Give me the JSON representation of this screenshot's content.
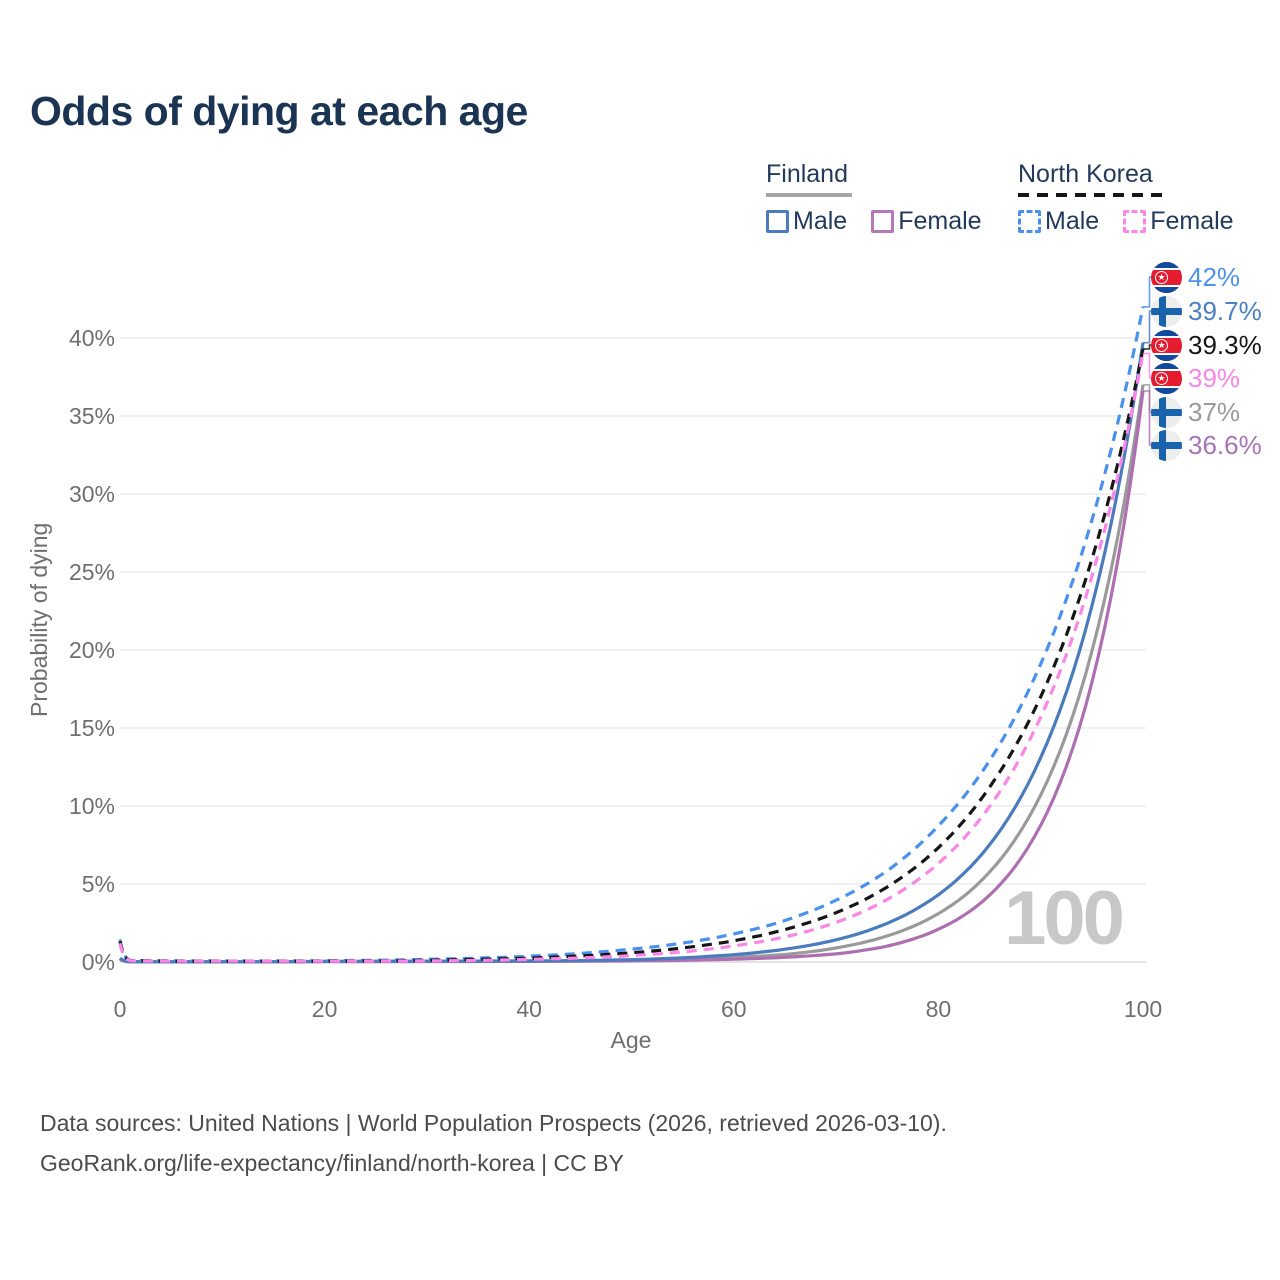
{
  "title": "Odds of dying at each age",
  "legend": {
    "groups": [
      {
        "label": "Finland",
        "underline_color": "#a6a6a6",
        "underline_style": "solid",
        "items": [
          {
            "label": "Male",
            "color": "#4a7cbd",
            "style": "solid"
          },
          {
            "label": "Female",
            "color": "#b778bb",
            "style": "solid"
          }
        ]
      },
      {
        "label": "North Korea",
        "underline_color": "#161616",
        "underline_style": "dashed",
        "items": [
          {
            "label": "Male",
            "color": "#4a90ee",
            "style": "dashed"
          },
          {
            "label": "Female",
            "color": "#fb86e8",
            "style": "dashed"
          }
        ]
      }
    ]
  },
  "end_labels": [
    {
      "flag": "north-korea",
      "text": "42%",
      "color": "#4e92ef"
    },
    {
      "flag": "finland",
      "text": "39.7%",
      "color": "#4a7fc1"
    },
    {
      "flag": "north-korea",
      "text": "39.3%",
      "color": "#161616"
    },
    {
      "flag": "north-korea",
      "text": "39%",
      "color": "#fb86e8"
    },
    {
      "flag": "finland",
      "text": "37%",
      "color": "#9a9a9a"
    },
    {
      "flag": "finland",
      "text": "36.6%",
      "color": "#a873b7"
    }
  ],
  "footer": {
    "line1": "Data sources: United Nations | World Population Prospects (2026, retrieved 2026-03-10).",
    "line2": "GeoRank.org/life-expectancy/finland/north-korea | CC BY"
  },
  "colors": {
    "title": "#1b3453",
    "axis_text": "#6f6f6f",
    "grid": "#ececec",
    "grid_zero": "#dcdcdc",
    "legend_text": "#233a5c",
    "footer_text": "#4c4c4c",
    "watermark": "#c8c8c8"
  },
  "flags": {
    "finland": {
      "background": "#ededed",
      "cross": "#1863ac"
    },
    "north_korea": {
      "red": "#e51c30",
      "blue": "#0f4aa0",
      "white": "#ffffff"
    }
  },
  "chart_data": {
    "type": "line",
    "title": "Odds of dying at each age",
    "xlabel": "Age",
    "ylabel": "Probability of dying",
    "xlim": [
      0,
      100
    ],
    "ylim": [
      0,
      44
    ],
    "x_ticks": [
      0,
      20,
      40,
      60,
      80,
      100
    ],
    "y_ticks": [
      "0%",
      "5%",
      "10%",
      "15%",
      "20%",
      "25%",
      "30%",
      "35%",
      "40%"
    ],
    "y_tick_values": [
      0,
      5,
      10,
      15,
      20,
      25,
      30,
      35,
      40
    ],
    "grid": "horizontal",
    "legend_position": "top-right",
    "watermark": "100",
    "x_sample_ages": [
      0,
      1,
      5,
      10,
      15,
      20,
      25,
      30,
      35,
      40,
      45,
      50,
      55,
      60,
      65,
      70,
      75,
      80,
      85,
      90,
      95,
      100
    ],
    "series": [
      {
        "name": "North Korea Male",
        "color": "#4a90ee",
        "style": "dashed",
        "end_label": "42%",
        "end_value": 42,
        "label_row": 0,
        "values": [
          1.45,
          0.1,
          0.07,
          0.06,
          0.06,
          0.08,
          0.11,
          0.17,
          0.25,
          0.37,
          0.55,
          0.82,
          1.21,
          1.8,
          2.66,
          3.96,
          5.85,
          8.73,
          12.9,
          19.1,
          28.3,
          42
        ]
      },
      {
        "name": "North Korea Total",
        "color": "#161616",
        "style": "dashed",
        "end_label": "39.3%",
        "end_value": 39.3,
        "label_row": 2,
        "values": [
          1.32,
          0.09,
          0.06,
          0.055,
          0.055,
          0.06,
          0.07,
          0.11,
          0.17,
          0.25,
          0.39,
          0.59,
          0.9,
          1.36,
          2.08,
          3.16,
          4.81,
          7.33,
          11.2,
          17.0,
          25.8,
          39.3
        ]
      },
      {
        "name": "North Korea Female",
        "color": "#fb86e8",
        "style": "dashed",
        "end_label": "39%",
        "end_value": 39,
        "label_row": 3,
        "values": [
          1.2,
          0.08,
          0.05,
          0.05,
          0.05,
          0.05,
          0.06,
          0.07,
          0.1,
          0.17,
          0.26,
          0.41,
          0.65,
          1.03,
          1.61,
          2.54,
          4.01,
          6.32,
          9.96,
          15.7,
          24.7,
          39
        ]
      },
      {
        "name": "Finland Male",
        "color": "#4a7cbd",
        "style": "solid",
        "end_label": "39.7%",
        "end_value": 39.7,
        "label_row": 1,
        "values": [
          0.25,
          0.02,
          0.01,
          0.01,
          0.02,
          0.04,
          0.05,
          0.05,
          0.06,
          0.07,
          0.09,
          0.15,
          0.27,
          0.47,
          0.82,
          1.42,
          2.48,
          4.31,
          7.51,
          13.1,
          22.8,
          39.7
        ]
      },
      {
        "name": "Finland Total",
        "color": "#9a9a9a",
        "style": "solid",
        "end_label": "37%",
        "end_value": 37,
        "label_row": 4,
        "values": [
          0.22,
          0.015,
          0.01,
          0.01,
          0.015,
          0.03,
          0.035,
          0.04,
          0.045,
          0.05,
          0.07,
          0.1,
          0.17,
          0.29,
          0.48,
          0.9,
          1.67,
          3.1,
          5.76,
          10.7,
          19.9,
          37
        ]
      },
      {
        "name": "Finland Female",
        "color": "#ad6fb2",
        "style": "solid",
        "end_label": "36.6%",
        "end_value": 36.6,
        "label_row": 5,
        "values": [
          0.19,
          0.012,
          0.008,
          0.008,
          0.012,
          0.02,
          0.025,
          0.03,
          0.035,
          0.04,
          0.05,
          0.07,
          0.11,
          0.18,
          0.3,
          0.52,
          1.02,
          2.1,
          4.28,
          8.76,
          17.9,
          36.6
        ]
      }
    ]
  }
}
